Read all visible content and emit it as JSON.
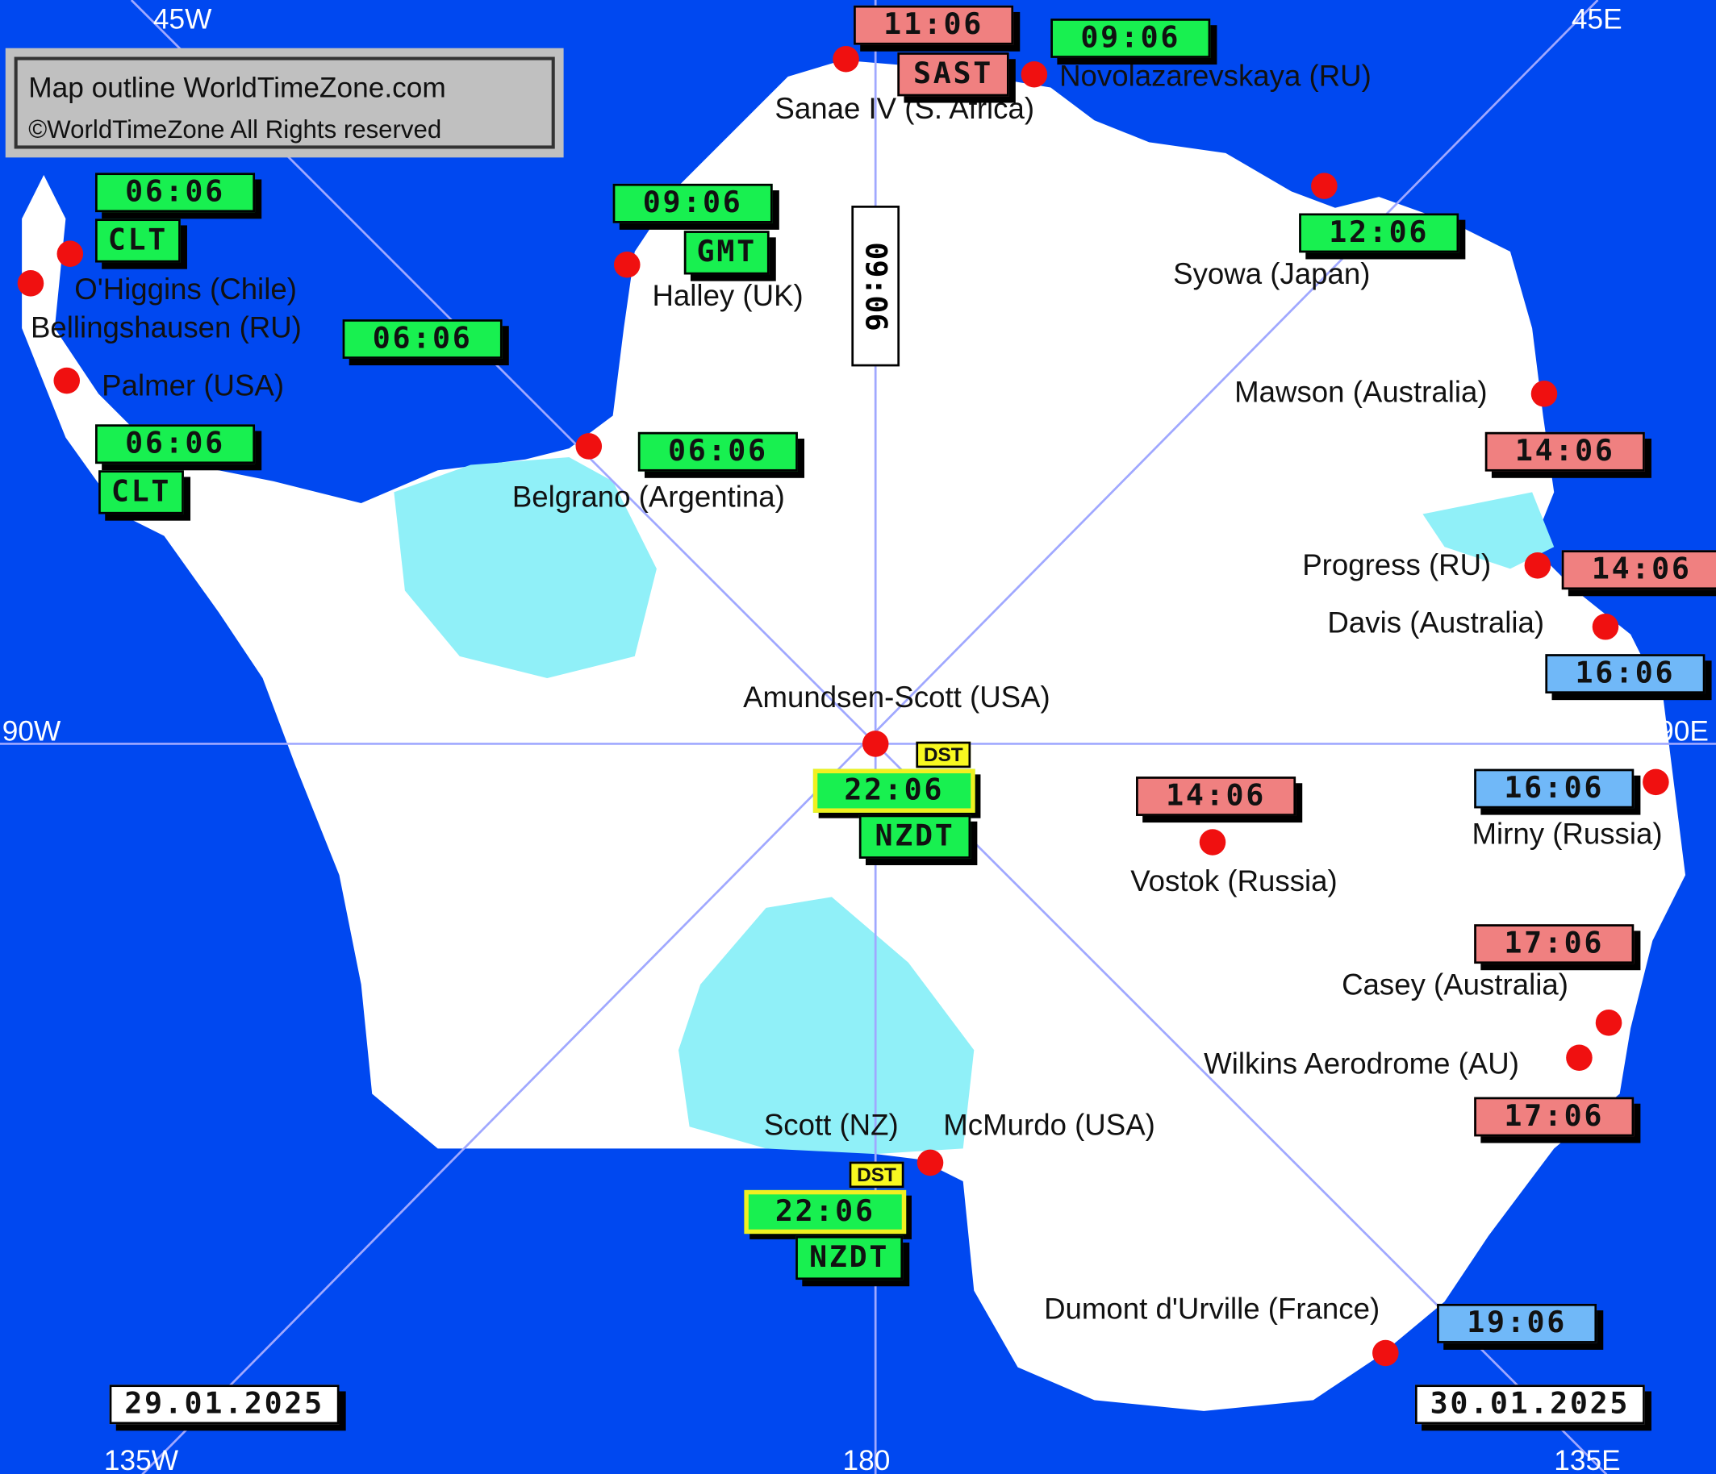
{
  "colors": {
    "ocean": "#0048f0",
    "land": "#ffffff",
    "ice_shelf": "#90f0f8",
    "station_dot": "#f01010",
    "standard_time": "#18f050",
    "ahead_time": "#f08080",
    "far_ahead_time": "#70b8f8",
    "dst": "#f8f820"
  },
  "copyright": {
    "line1": "Map outline  WorldTimeZone.com",
    "line2": "©WorldTimeZone  All Rights reserved"
  },
  "axes": {
    "w45": "45W",
    "e45": "45E",
    "w90": "90W",
    "e90": "90E",
    "w135": "135W",
    "s180": "180",
    "e135": "135E"
  },
  "dates": {
    "left": "29.01.2025",
    "right": "30.01.2025"
  },
  "utc_clock": "09:06",
  "stations": {
    "sanae": {
      "name": "Sanae IV (S. Africa)",
      "time": "11:06",
      "zone": "SAST"
    },
    "novolazarevskaya": {
      "name": "Novolazarevskaya (RU)",
      "time": "09:06"
    },
    "ohiggins": {
      "name": "O'Higgins (Chile)",
      "time": "06:06",
      "zone": "CLT"
    },
    "bellingshausen": {
      "name": "Bellingshausen (RU)",
      "time": "06:06"
    },
    "halley": {
      "name": "Halley (UK)",
      "time": "09:06",
      "zone": "GMT"
    },
    "syowa": {
      "name": "Syowa (Japan)",
      "time": "12:06"
    },
    "palmer": {
      "name": "Palmer (USA)",
      "time": "06:06",
      "zone": "CLT"
    },
    "belgrano": {
      "name": "Belgrano (Argentina)",
      "time": "06:06"
    },
    "mawson": {
      "name": "Mawson (Australia)",
      "time": "14:06"
    },
    "progress": {
      "name": "Progress (RU)",
      "time": "14:06"
    },
    "davis": {
      "name": "Davis (Australia)",
      "time": "16:06"
    },
    "amundsen": {
      "name": "Amundsen-Scott (USA)",
      "time": "22:06",
      "zone": "NZDT",
      "dst": "DST"
    },
    "vostok": {
      "name": "Vostok (Russia)",
      "time": "14:06"
    },
    "mirny": {
      "name": "Mirny (Russia)",
      "time": "16:06"
    },
    "casey": {
      "name": "Casey (Australia)",
      "time": "17:06"
    },
    "wilkins": {
      "name": "Wilkins Aerodrome (AU)",
      "time": "17:06"
    },
    "scott": {
      "name": "Scott (NZ)"
    },
    "mcmurdo": {
      "name": "McMurdo (USA)",
      "time": "22:06",
      "zone": "NZDT",
      "dst": "DST"
    },
    "dumont": {
      "name": "Dumont d'Urville (France)",
      "time": "19:06"
    }
  }
}
